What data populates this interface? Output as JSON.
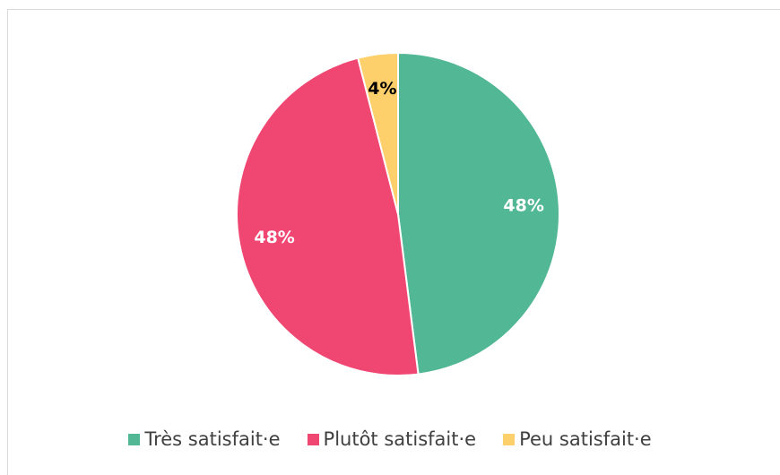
{
  "chart_data": {
    "type": "pie",
    "categories": [
      "Très satisfait·e",
      "Plutôt satisfait·e",
      "Peu satisfait·e"
    ],
    "values": [
      48,
      48,
      4
    ],
    "value_labels": [
      "48%",
      "48%",
      "4%"
    ],
    "colors": [
      "#52b794",
      "#ef4672",
      "#fdd06b"
    ],
    "label_colors": [
      "#ffffff",
      "#ffffff",
      "#000000"
    ],
    "legend": "bottom"
  }
}
